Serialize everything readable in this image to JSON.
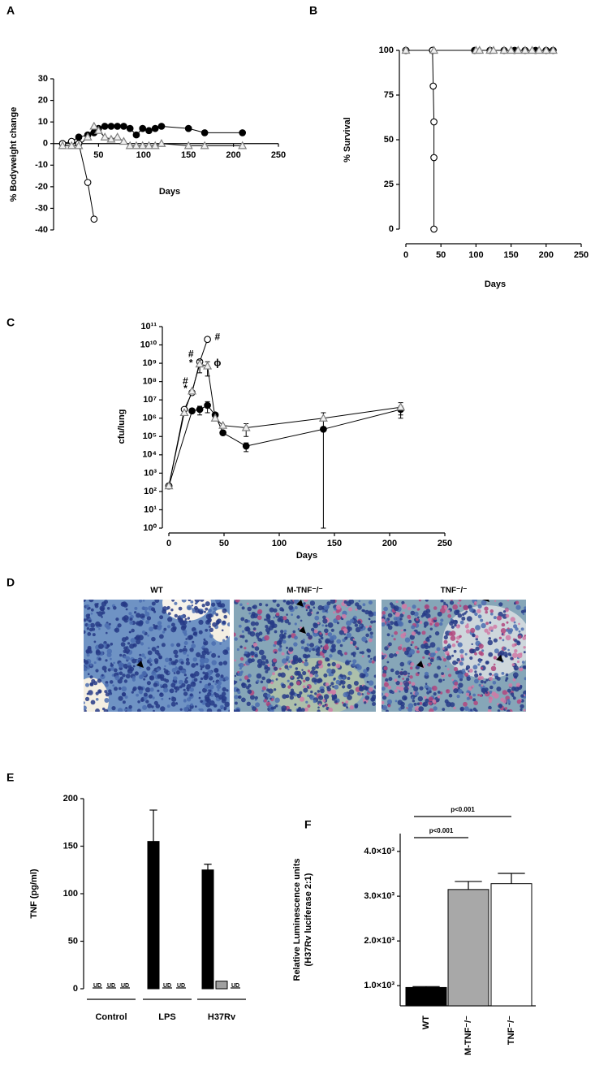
{
  "chart_data": [
    {
      "type": "line",
      "panel": "A",
      "xlabel": "Days",
      "ylabel": "% Bodyweight change",
      "xlim": [
        0,
        250
      ],
      "xticks": [
        50,
        100,
        150,
        200,
        250
      ],
      "ylim": [
        -40,
        30
      ],
      "yticks": [
        -40,
        -30,
        -20,
        -10,
        0,
        10,
        20,
        30
      ],
      "series": [
        {
          "marker": "filled-circle",
          "color": "#000000",
          "x": [
            10,
            20,
            28,
            38,
            45,
            50,
            57,
            64,
            71,
            78,
            85,
            92,
            99,
            106,
            113,
            120,
            150,
            168,
            210
          ],
          "values": [
            0,
            1,
            3,
            4,
            5,
            7,
            8,
            8,
            8,
            8,
            7,
            4,
            7,
            6,
            7,
            8,
            7,
            5,
            5
          ]
        },
        {
          "marker": "open-circle",
          "color": "#000000",
          "x": [
            10,
            20,
            28,
            38,
            45
          ],
          "values": [
            0,
            1,
            0,
            -18,
            -35
          ]
        },
        {
          "marker": "open-triangle",
          "color": "#808080",
          "x": [
            10,
            20,
            28,
            38,
            45,
            50,
            57,
            64,
            71,
            78,
            85,
            92,
            99,
            106,
            113,
            120,
            150,
            168,
            210
          ],
          "values": [
            -1,
            -1,
            -1,
            3,
            8,
            6,
            3,
            2,
            3,
            1,
            -1,
            -1,
            -1,
            -1,
            -1,
            0,
            -1,
            -1,
            -1
          ]
        }
      ]
    },
    {
      "type": "line",
      "panel": "B",
      "xlabel": "Days",
      "ylabel": "% Survival",
      "xlim": [
        0,
        250
      ],
      "xticks": [
        0,
        50,
        100,
        150,
        200,
        250
      ],
      "ylim": [
        0,
        100
      ],
      "yticks": [
        0,
        25,
        50,
        75,
        100
      ],
      "series": [
        {
          "marker": "filled-circle",
          "color": "#000000",
          "x": [
            0,
            38,
            98,
            120,
            140,
            155,
            170,
            185,
            200,
            210
          ],
          "values": [
            100,
            100,
            100,
            100,
            100,
            100,
            100,
            100,
            100,
            100
          ]
        },
        {
          "marker": "open-circle",
          "color": "#000000",
          "x": [
            0,
            38,
            39,
            40,
            40,
            40
          ],
          "values": [
            100,
            100,
            80,
            60,
            40,
            0
          ]
        },
        {
          "marker": "open-triangle",
          "color": "#808080",
          "x": [
            0,
            40,
            100,
            105,
            120,
            125,
            140,
            150,
            160,
            170,
            180,
            190,
            200,
            210
          ],
          "values": [
            100,
            100,
            100,
            100,
            100,
            100,
            100,
            100,
            100,
            100,
            100,
            100,
            100,
            100
          ]
        }
      ]
    },
    {
      "type": "line",
      "panel": "C",
      "xlabel": "Days",
      "ylabel": "cfu/lung",
      "log": true,
      "xlim": [
        0,
        250
      ],
      "xticks": [
        0,
        50,
        100,
        150,
        200,
        250
      ],
      "ylim": [
        1,
        100000000000
      ],
      "yticks": [
        {
          "value": 1,
          "label": "10⁰"
        },
        {
          "value": 10,
          "label": "10¹"
        },
        {
          "value": 100,
          "label": "10²"
        },
        {
          "value": 1000,
          "label": "10³"
        },
        {
          "value": 10000,
          "label": "10⁴"
        },
        {
          "value": 100000,
          "label": "10⁵"
        },
        {
          "value": 1000000,
          "label": "10⁶"
        },
        {
          "value": 10000000,
          "label": "10⁷"
        },
        {
          "value": 100000000,
          "label": "10⁸"
        },
        {
          "value": 1000000000,
          "label": "10⁹"
        },
        {
          "value": 10000000000,
          "label": "10¹⁰"
        },
        {
          "value": 100000000000,
          "label": "10¹¹"
        }
      ],
      "series": [
        {
          "marker": "filled-circle",
          "color": "#000000",
          "x": [
            0,
            21,
            28,
            35,
            42,
            49,
            70,
            140,
            210
          ],
          "values": [
            200,
            2500000,
            3000000,
            5000000,
            1500000,
            160000,
            30000,
            250000,
            3000000
          ],
          "errors": [
            null,
            null,
            1500000,
            3000000,
            null,
            null,
            15000,
            null,
            1500000
          ]
        },
        {
          "marker": "open-circle",
          "color": "#000000",
          "x": [
            0,
            14,
            21,
            28,
            35
          ],
          "values": [
            200,
            3000000,
            25000000,
            1200000000,
            20000000000
          ],
          "errors": [
            null,
            null,
            null,
            null,
            null
          ]
        },
        {
          "marker": "open-triangle",
          "color": "#808080",
          "x": [
            0,
            14,
            21,
            28,
            35,
            42,
            49,
            70,
            140,
            210
          ],
          "values": [
            200,
            2000000,
            30000000,
            900000000,
            700000000,
            1000000,
            400000,
            300000,
            1000000,
            4000000
          ],
          "errors": [
            null,
            null,
            null,
            600000000,
            500000000,
            null,
            null,
            200000,
            1000000,
            3000000
          ]
        }
      ],
      "annotations": [
        {
          "text": "#",
          "x": 15,
          "y": 100000000
        },
        {
          "text": "*",
          "x": 15,
          "y": 40000000
        },
        {
          "text": "#",
          "x": 20,
          "y": 3000000000
        },
        {
          "text": "*",
          "x": 20,
          "y": 1000000000
        },
        {
          "text": "#",
          "x": 44,
          "y": 25000000000
        },
        {
          "text": "ϕ",
          "x": 44,
          "y": 1000000000
        }
      ]
    },
    {
      "type": "bar",
      "panel": "E",
      "ylabel": "TNF (pg/ml)",
      "categories": [
        "Control",
        "LPS",
        "H37Rv"
      ],
      "ylim": [
        0,
        200
      ],
      "yticks": [
        0,
        50,
        100,
        150,
        200
      ],
      "series": [
        {
          "color": "#000000",
          "values": [
            null,
            155,
            125
          ],
          "errors": [
            null,
            33,
            6
          ],
          "value_labels": [
            "UD",
            null,
            null
          ]
        },
        {
          "color": "#a0a0a0",
          "values": [
            null,
            null,
            8
          ],
          "errors": [
            null,
            null,
            null
          ],
          "value_labels": [
            "UD",
            "UD",
            null
          ]
        },
        {
          "color": "#ffffff",
          "values": [
            null,
            null,
            null
          ],
          "errors": [
            null,
            null,
            null
          ],
          "value_labels": [
            "UD",
            "UD",
            "UD"
          ]
        }
      ]
    },
    {
      "type": "bar",
      "panel": "F",
      "ylabel": [
        "Relative Luminescence units",
        "(H37Rv luciferase 2:1)"
      ],
      "categories": [
        "WT",
        "M-TNF⁻/⁻",
        "TNF⁻/⁻"
      ],
      "values": [
        960,
        3150,
        3280
      ],
      "errors": [
        20,
        180,
        230
      ],
      "colors": [
        "#000000",
        "#a8a8a8",
        "#ffffff"
      ],
      "ylim": [
        550,
        4400
      ],
      "yticks": [
        {
          "value": 1000,
          "label": "1.0×10³"
        },
        {
          "value": 2000,
          "label": "2.0×10³"
        },
        {
          "value": 3000,
          "label": "3.0×10³"
        },
        {
          "value": 4000,
          "label": "4.0×10³"
        }
      ],
      "comparisons": [
        {
          "from": 0,
          "to": 1,
          "label": "p<0.001"
        },
        {
          "from": 0,
          "to": 2,
          "label": "p<0.001"
        }
      ]
    }
  ],
  "panel_d": {
    "label": "D",
    "images": [
      {
        "title": "WT"
      },
      {
        "title": "M-TNF⁻/⁻"
      },
      {
        "title": "TNF⁻/⁻"
      }
    ]
  }
}
